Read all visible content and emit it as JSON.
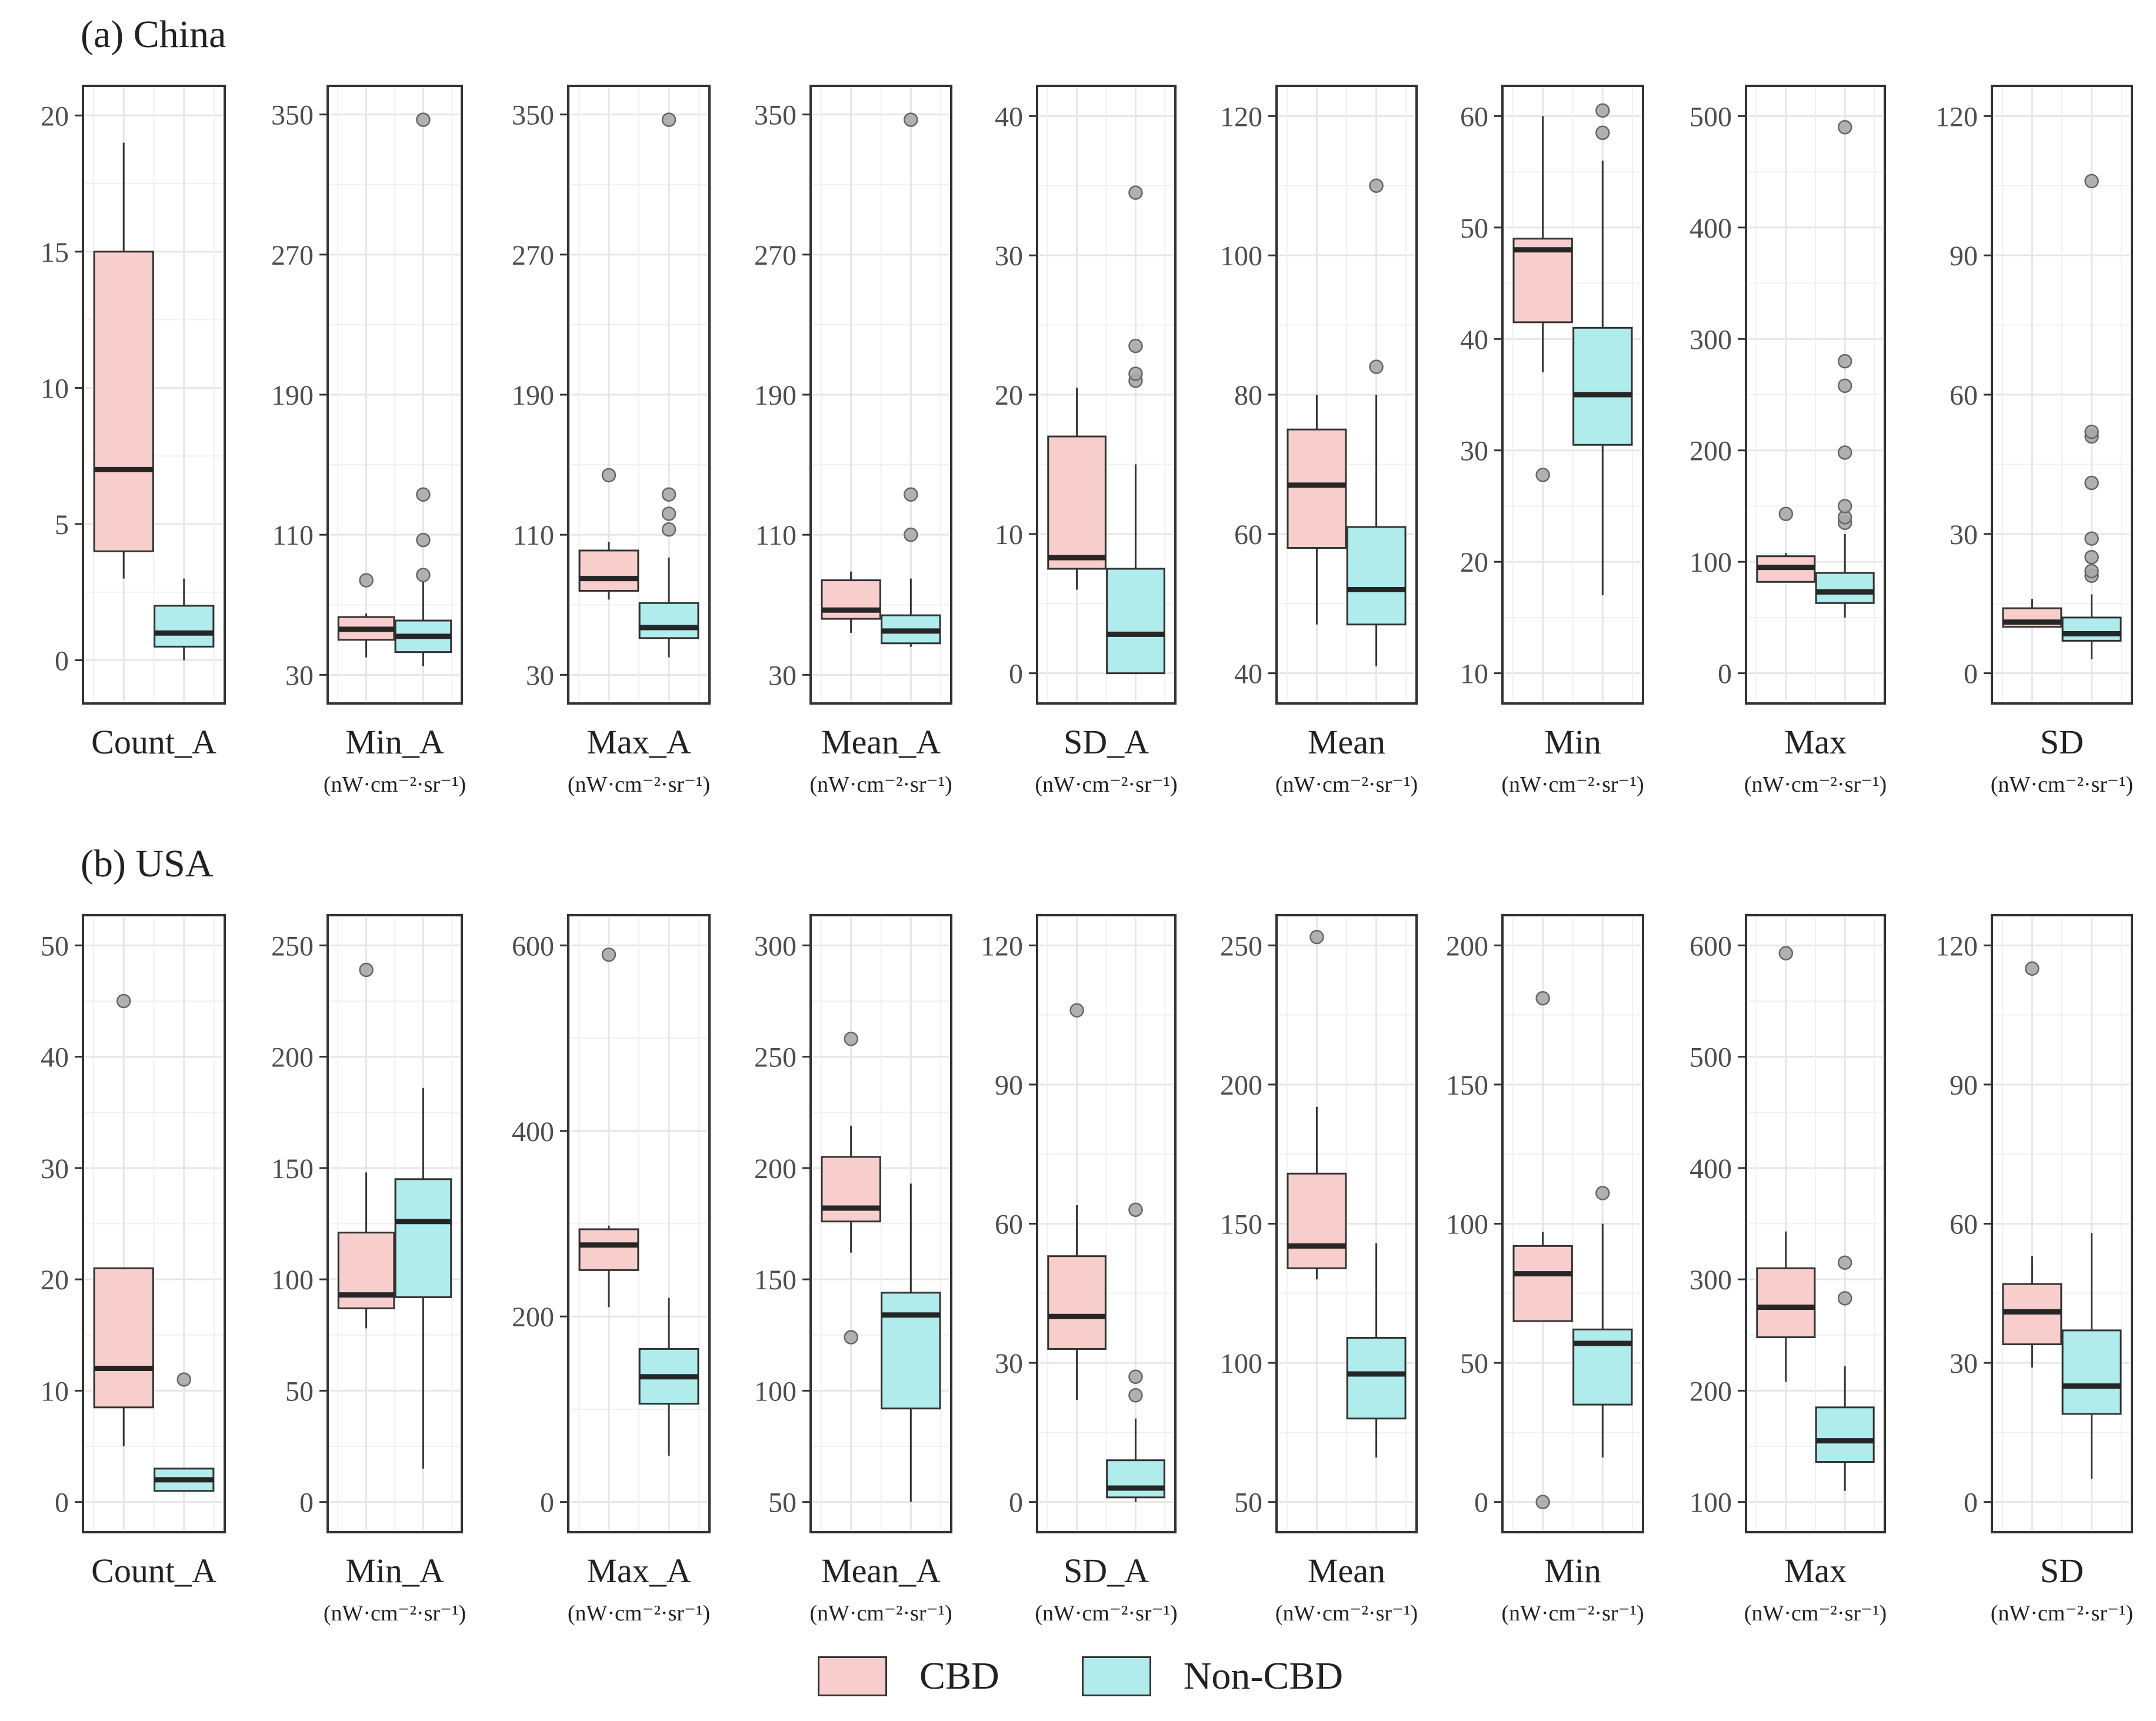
{
  "colors": {
    "cbd": "#f8cecc",
    "non_cbd": "#b0ecec",
    "outline": "#333333",
    "median": "#262626",
    "grid": "#e6e6e6",
    "outlier_fill": "#a8a8a8",
    "outlier_stroke": "#666666"
  },
  "legend": {
    "cbd": "CBD",
    "non_cbd": "Non-CBD"
  },
  "units": "(nW·cm⁻²·sr⁻¹)",
  "chart_data": [
    {
      "panel_title": "(a) China",
      "type": "box",
      "groups": [
        "CBD",
        "Non-CBD"
      ],
      "subplots": [
        {
          "name": "Count_A",
          "unit": "",
          "ylim": [
            -1.5,
            21
          ],
          "ticks": [
            0,
            5,
            10,
            15,
            20
          ],
          "boxes": [
            {
              "q1": 4,
              "median": 7,
              "q3": 15,
              "whisker_low": 3,
              "whisker_high": 19,
              "outliers": []
            },
            {
              "q1": 0.5,
              "median": 1,
              "q3": 2,
              "whisker_low": 0,
              "whisker_high": 3,
              "outliers": []
            }
          ]
        },
        {
          "name": "Min_A",
          "unit": "(nW·cm⁻²·sr⁻¹)",
          "ylim": [
            15,
            365
          ],
          "ticks": [
            30,
            110,
            190,
            270,
            350
          ],
          "boxes": [
            {
              "q1": 50,
              "median": 56,
              "q3": 63,
              "whisker_low": 40,
              "whisker_high": 65,
              "outliers": [
                84
              ]
            },
            {
              "q1": 43,
              "median": 52,
              "q3": 61,
              "whisker_low": 35,
              "whisker_high": 83,
              "outliers": [
                87,
                107,
                133,
                347
              ]
            }
          ]
        },
        {
          "name": "Max_A",
          "unit": "(nW·cm⁻²·sr⁻¹)",
          "ylim": [
            15,
            365
          ],
          "ticks": [
            30,
            110,
            190,
            270,
            350
          ],
          "boxes": [
            {
              "q1": 78,
              "median": 85,
              "q3": 101,
              "whisker_low": 73,
              "whisker_high": 106,
              "outliers": [
                144
              ]
            },
            {
              "q1": 51,
              "median": 57,
              "q3": 71,
              "whisker_low": 40,
              "whisker_high": 97,
              "outliers": [
                113,
                122,
                133,
                347
              ]
            }
          ]
        },
        {
          "name": "Mean_A",
          "unit": "(nW·cm⁻²·sr⁻¹)",
          "ylim": [
            15,
            365
          ],
          "ticks": [
            30,
            110,
            190,
            270,
            350
          ],
          "boxes": [
            {
              "q1": 62,
              "median": 67,
              "q3": 84,
              "whisker_low": 54,
              "whisker_high": 89,
              "outliers": []
            },
            {
              "q1": 48,
              "median": 55,
              "q3": 64,
              "whisker_low": 46,
              "whisker_high": 85,
              "outliers": [
                110,
                133,
                347
              ]
            }
          ]
        },
        {
          "name": "SD_A",
          "unit": "(nW·cm⁻²·sr⁻¹)",
          "ylim": [
            -2,
            42
          ],
          "ticks": [
            0,
            10,
            20,
            30,
            40
          ],
          "boxes": [
            {
              "q1": 7.5,
              "median": 8.3,
              "q3": 17,
              "whisker_low": 6,
              "whisker_high": 20.5,
              "outliers": []
            },
            {
              "q1": 0,
              "median": 2.8,
              "q3": 7.5,
              "whisker_low": 0,
              "whisker_high": 15,
              "outliers": [
                21,
                21.5,
                23.5,
                34.5
              ]
            }
          ]
        },
        {
          "name": "Mean",
          "unit": "(nW·cm⁻²·sr⁻¹)",
          "ylim": [
            36,
            124
          ],
          "ticks": [
            40,
            60,
            80,
            100,
            120
          ],
          "boxes": [
            {
              "q1": 58,
              "median": 67,
              "q3": 75,
              "whisker_low": 47,
              "whisker_high": 80,
              "outliers": []
            },
            {
              "q1": 47,
              "median": 52,
              "q3": 61,
              "whisker_low": 41,
              "whisker_high": 80,
              "outliers": [
                84,
                110
              ]
            }
          ]
        },
        {
          "name": "Min",
          "unit": "(nW·cm⁻²·sr⁻¹)",
          "ylim": [
            7.5,
            62.5
          ],
          "ticks": [
            10,
            20,
            30,
            40,
            50,
            60
          ],
          "boxes": [
            {
              "q1": 41.5,
              "median": 48,
              "q3": 49,
              "whisker_low": 37,
              "whisker_high": 60,
              "outliers": [
                27.8
              ]
            },
            {
              "q1": 30.5,
              "median": 35,
              "q3": 41,
              "whisker_low": 17,
              "whisker_high": 56,
              "outliers": [
                58.5,
                60.5
              ]
            }
          ]
        },
        {
          "name": "Max",
          "unit": "(nW·cm⁻²·sr⁻¹)",
          "ylim": [
            -25,
            525
          ],
          "ticks": [
            0,
            100,
            200,
            300,
            400,
            500
          ],
          "boxes": [
            {
              "q1": 82,
              "median": 95,
              "q3": 105,
              "whisker_low": 82,
              "whisker_high": 108,
              "outliers": [
                143
              ]
            },
            {
              "q1": 63,
              "median": 73,
              "q3": 90,
              "whisker_low": 50,
              "whisker_high": 125,
              "outliers": [
                135,
                140,
                150,
                198,
                258,
                280,
                490
              ]
            }
          ]
        },
        {
          "name": "SD",
          "unit": "(nW·cm⁻²·sr⁻¹)",
          "ylim": [
            -6,
            126
          ],
          "ticks": [
            0,
            30,
            60,
            90,
            120
          ],
          "boxes": [
            {
              "q1": 10,
              "median": 11,
              "q3": 14,
              "whisker_low": 10,
              "whisker_high": 16,
              "outliers": []
            },
            {
              "q1": 7,
              "median": 8.5,
              "q3": 12,
              "whisker_low": 3,
              "whisker_high": 17,
              "outliers": [
                21,
                22,
                25,
                29,
                41,
                51,
                52,
                106
              ]
            }
          ]
        }
      ]
    },
    {
      "panel_title": "(b) USA",
      "type": "box",
      "groups": [
        "CBD",
        "Non-CBD"
      ],
      "subplots": [
        {
          "name": "Count_A",
          "unit": "",
          "ylim": [
            -2.5,
            52.5
          ],
          "ticks": [
            0,
            10,
            20,
            30,
            40,
            50
          ],
          "boxes": [
            {
              "q1": 8.5,
              "median": 12,
              "q3": 21,
              "whisker_low": 5,
              "whisker_high": 21,
              "outliers": [
                45
              ]
            },
            {
              "q1": 1,
              "median": 2,
              "q3": 3,
              "whisker_low": 1,
              "whisker_high": 3,
              "outliers": [
                11
              ]
            }
          ]
        },
        {
          "name": "Min_A",
          "unit": "(nW·cm⁻²·sr⁻¹)",
          "ylim": [
            -12.5,
            262.5
          ],
          "ticks": [
            0,
            50,
            100,
            150,
            200,
            250
          ],
          "boxes": [
            {
              "q1": 87,
              "median": 93,
              "q3": 121,
              "whisker_low": 78,
              "whisker_high": 148,
              "outliers": [
                239
              ]
            },
            {
              "q1": 92,
              "median": 126,
              "q3": 145,
              "whisker_low": 15,
              "whisker_high": 186,
              "outliers": []
            }
          ]
        },
        {
          "name": "Max_A",
          "unit": "(nW·cm⁻²·sr⁻¹)",
          "ylim": [
            -30,
            630
          ],
          "ticks": [
            0,
            200,
            400,
            600
          ],
          "boxes": [
            {
              "q1": 250,
              "median": 277,
              "q3": 294,
              "whisker_low": 210,
              "whisker_high": 298,
              "outliers": [
                590
              ]
            },
            {
              "q1": 106,
              "median": 135,
              "q3": 165,
              "whisker_low": 50,
              "whisker_high": 220,
              "outliers": []
            }
          ]
        },
        {
          "name": "Mean_A",
          "unit": "(nW·cm⁻²·sr⁻¹)",
          "ylim": [
            37.5,
            312.5
          ],
          "ticks": [
            50,
            100,
            150,
            200,
            250,
            300
          ],
          "boxes": [
            {
              "q1": 176,
              "median": 182,
              "q3": 205,
              "whisker_low": 162,
              "whisker_high": 219,
              "outliers": [
                124,
                258
              ]
            },
            {
              "q1": 92,
              "median": 134,
              "q3": 144,
              "whisker_low": 50,
              "whisker_high": 193,
              "outliers": []
            }
          ]
        },
        {
          "name": "SD_A",
          "unit": "(nW·cm⁻²·sr⁻¹)",
          "ylim": [
            -6,
            126
          ],
          "ticks": [
            0,
            30,
            60,
            90,
            120
          ],
          "boxes": [
            {
              "q1": 33,
              "median": 40,
              "q3": 53,
              "whisker_low": 22,
              "whisker_high": 64,
              "outliers": [
                106
              ]
            },
            {
              "q1": 1,
              "median": 3,
              "q3": 9,
              "whisker_low": 0,
              "whisker_high": 18,
              "outliers": [
                23,
                27,
                63
              ]
            }
          ]
        },
        {
          "name": "Mean",
          "unit": "(nW·cm⁻²·sr⁻¹)",
          "ylim": [
            40,
            260
          ],
          "ticks": [
            50,
            100,
            150,
            200,
            250
          ],
          "boxes": [
            {
              "q1": 134,
              "median": 142,
              "q3": 168,
              "whisker_low": 130,
              "whisker_high": 192,
              "outliers": [
                253
              ]
            },
            {
              "q1": 80,
              "median": 96,
              "q3": 109,
              "whisker_low": 66,
              "whisker_high": 143,
              "outliers": []
            }
          ]
        },
        {
          "name": "Min",
          "unit": "(nW·cm⁻²·sr⁻¹)",
          "ylim": [
            -10,
            210
          ],
          "ticks": [
            0,
            50,
            100,
            150,
            200
          ],
          "boxes": [
            {
              "q1": 65,
              "median": 82,
              "q3": 92,
              "whisker_low": 65,
              "whisker_high": 97,
              "outliers": [
                0,
                181
              ]
            },
            {
              "q1": 35,
              "median": 57,
              "q3": 62,
              "whisker_low": 16,
              "whisker_high": 100,
              "outliers": [
                111
              ]
            }
          ]
        },
        {
          "name": "Max",
          "unit": "(nW·cm⁻²·sr⁻¹)",
          "ylim": [
            75,
            625
          ],
          "ticks": [
            100,
            200,
            300,
            400,
            500,
            600
          ],
          "boxes": [
            {
              "q1": 248,
              "median": 275,
              "q3": 310,
              "whisker_low": 208,
              "whisker_high": 343,
              "outliers": [
                593
              ]
            },
            {
              "q1": 136,
              "median": 155,
              "q3": 185,
              "whisker_low": 110,
              "whisker_high": 222,
              "outliers": [
                283,
                315
              ]
            }
          ]
        },
        {
          "name": "SD",
          "unit": "(nW·cm⁻²·sr⁻¹)",
          "ylim": [
            -6,
            126
          ],
          "ticks": [
            0,
            30,
            60,
            90,
            120
          ],
          "boxes": [
            {
              "q1": 34,
              "median": 41,
              "q3": 47,
              "whisker_low": 29,
              "whisker_high": 53,
              "outliers": [
                115
              ]
            },
            {
              "q1": 19,
              "median": 25,
              "q3": 37,
              "whisker_low": 5,
              "whisker_high": 58,
              "outliers": []
            }
          ]
        }
      ]
    }
  ]
}
